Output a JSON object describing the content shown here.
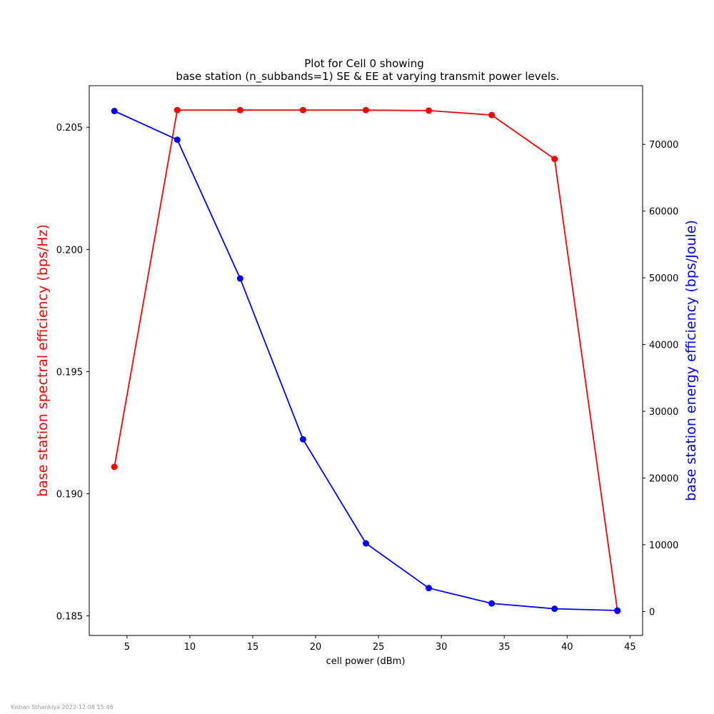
{
  "footer_text": "Kishan Sthankiya 2022-12-08 15:46",
  "chart_data": {
    "type": "line",
    "title_lines": [
      "Plot for Cell 0 showing",
      "base station (n_subbands=1) SE & EE at varying transmit power levels."
    ],
    "xlabel": "cell power (dBm)",
    "ylabel_left": "base station spectral efficiency (bps/Hz)",
    "ylabel_right": "base station energy efficiency (bps/Joule)",
    "x": [
      4,
      9,
      14,
      19,
      24,
      29,
      34,
      39,
      44
    ],
    "xlim": [
      2.0,
      46.0
    ],
    "xticks": [
      5,
      10,
      15,
      20,
      25,
      30,
      35,
      40,
      45
    ],
    "ylim_left": [
      0.1842,
      0.2067
    ],
    "yticks_left": [
      0.185,
      0.19,
      0.195,
      0.2,
      0.205
    ],
    "yticks_left_labels": [
      "0.185",
      "0.190",
      "0.195",
      "0.200",
      "0.205"
    ],
    "ylim_right": [
      -3600,
      78800
    ],
    "yticks_right": [
      0,
      10000,
      20000,
      30000,
      40000,
      50000,
      60000,
      70000
    ],
    "yticks_right_labels": [
      "0",
      "10000",
      "20000",
      "30000",
      "40000",
      "50000",
      "60000",
      "70000"
    ],
    "grid": false,
    "series": [
      {
        "axis": "left",
        "color": "#ff0000",
        "values": [
          0.1911,
          0.2057,
          0.2057,
          0.2057,
          0.2057,
          0.20568,
          0.2055,
          0.2037,
          0.1852
        ]
      },
      {
        "axis": "right",
        "color": "#0000ff",
        "values": [
          75000,
          70700,
          49900,
          25800,
          10200,
          3500,
          1200,
          400,
          150
        ]
      }
    ]
  }
}
